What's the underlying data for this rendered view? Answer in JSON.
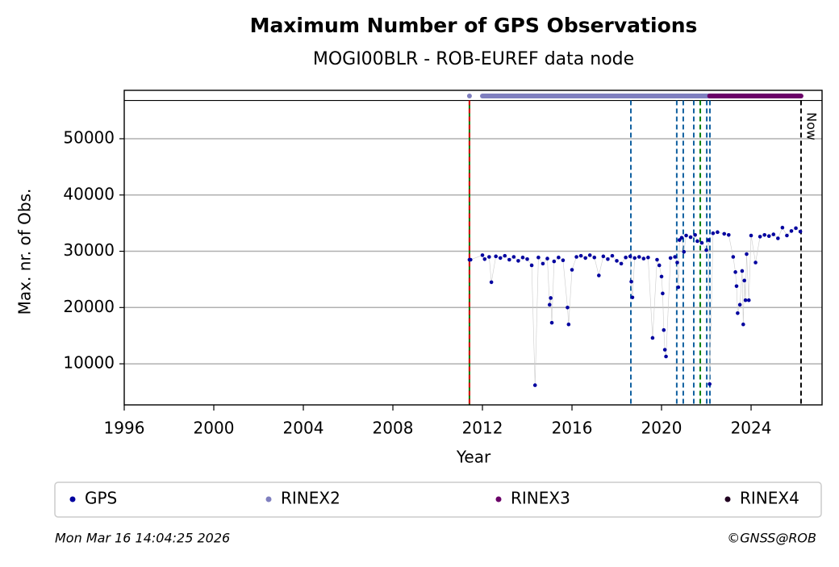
{
  "chart_data": {
    "type": "scatter",
    "title": "Maximum Number of GPS Observations",
    "subtitle": "MOGI00BLR - ROB-EUREF data node",
    "x_label": "Year",
    "y_label": "Max. nr. of Obs.",
    "xlim": [
      1996,
      2027.17
    ],
    "ylim": [
      2700,
      58600
    ],
    "xticks": [
      1996,
      2000,
      2004,
      2008,
      2012,
      2016,
      2020,
      2024
    ],
    "yticks": [
      10000,
      20000,
      30000,
      40000,
      50000
    ],
    "grid": true,
    "separator_y": 56800,
    "series": [
      {
        "name": "GPS",
        "color": "#00009f",
        "x": [
          2011.42,
          2011.47,
          2012.0,
          2012.1,
          2012.3,
          2012.4,
          2012.6,
          2012.8,
          2013.0,
          2013.2,
          2013.4,
          2013.6,
          2013.8,
          2014.0,
          2014.2,
          2014.35,
          2014.5,
          2014.7,
          2014.9,
          2015.0,
          2015.05,
          2015.1,
          2015.2,
          2015.4,
          2015.6,
          2015.8,
          2015.85,
          2016.0,
          2016.2,
          2016.4,
          2016.6,
          2016.8,
          2017.0,
          2017.2,
          2017.4,
          2017.6,
          2017.8,
          2018.0,
          2018.2,
          2018.4,
          2018.6,
          2018.65,
          2018.7,
          2018.8,
          2019.0,
          2019.2,
          2019.4,
          2019.6,
          2019.8,
          2019.9,
          2020.0,
          2020.05,
          2020.1,
          2020.15,
          2020.2,
          2020.4,
          2020.6,
          2020.7,
          2020.75,
          2020.8,
          2020.9,
          2021.0,
          2021.1,
          2021.3,
          2021.5,
          2021.6,
          2021.8,
          2022.0,
          2022.1,
          2022.15,
          2022.3,
          2022.5,
          2022.8,
          2023.0,
          2023.2,
          2023.3,
          2023.35,
          2023.4,
          2023.5,
          2023.6,
          2023.65,
          2023.7,
          2023.75,
          2023.8,
          2023.9,
          2024.0,
          2024.2,
          2024.4,
          2024.6,
          2024.8,
          2025.0,
          2025.2,
          2025.4,
          2025.6,
          2025.8,
          2026.0,
          2026.2
        ],
        "values": [
          28500,
          28500,
          29300,
          28600,
          29000,
          24500,
          29100,
          28800,
          29200,
          28500,
          29000,
          28300,
          28900,
          28600,
          27500,
          6200,
          28900,
          27800,
          28700,
          20500,
          21700,
          17300,
          28200,
          28900,
          28400,
          20000,
          17000,
          26700,
          29000,
          29200,
          28800,
          29300,
          28900,
          25700,
          29100,
          28600,
          29200,
          28300,
          27800,
          28900,
          29100,
          24600,
          21800,
          28800,
          29000,
          28700,
          28900,
          14600,
          28500,
          27500,
          25500,
          22500,
          16000,
          12500,
          11300,
          28800,
          29000,
          28000,
          23600,
          32000,
          32400,
          29900,
          32800,
          32500,
          32900,
          31800,
          31500,
          30200,
          32000,
          6400,
          33200,
          33400,
          33100,
          32900,
          29000,
          26300,
          23800,
          19000,
          20500,
          26500,
          17000,
          24800,
          21300,
          29500,
          21300,
          32800,
          28000,
          32600,
          32900,
          32700,
          33000,
          32300,
          34200,
          32800,
          33600,
          34100,
          33500
        ]
      },
      {
        "name": "RINEX2",
        "color": "#7f7fbf",
        "x": [
          2011.42,
          null,
          2012.0,
          2022.15
        ],
        "values": [
          57600,
          null,
          57600,
          57600
        ]
      },
      {
        "name": "RINEX3",
        "color": "#6a0068",
        "x": [
          2022.15,
          2026.23
        ],
        "values": [
          57600,
          57600
        ]
      },
      {
        "name": "RINEX4",
        "color": "#200020",
        "x": [],
        "values": []
      }
    ],
    "events": [
      {
        "x": 2011.42,
        "color": "#008000"
      },
      {
        "x": 2011.42,
        "color": "#dd0000"
      },
      {
        "x": 2018.63,
        "color": "#1060a0"
      },
      {
        "x": 2020.68,
        "color": "#1060a0"
      },
      {
        "x": 2020.97,
        "color": "#1060a0"
      },
      {
        "x": 2021.44,
        "color": "#1060a0"
      },
      {
        "x": 2021.73,
        "color": "#008000"
      },
      {
        "x": 2022.02,
        "color": "#1060a0"
      },
      {
        "x": 2022.16,
        "color": "#1060a0"
      }
    ],
    "now": {
      "x": 2026.23,
      "label": "Now"
    },
    "footer_left": "Mon Mar 16 14:04:25 2026",
    "footer_right": "©GNSS@ROB"
  }
}
